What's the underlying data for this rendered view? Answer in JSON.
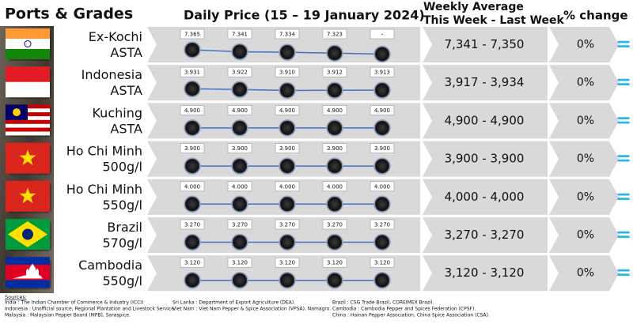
{
  "header": {
    "ports": "Ports & Grades",
    "daily": "Daily Price (15 – 19 January 2024)",
    "weekly_line1": "Weekly Average",
    "weekly_line2": "This Week - Last Week",
    "change": "% change"
  },
  "rows": [
    {
      "port": "Ex-Kochi",
      "grade": "ASTA",
      "prices": [
        {
          "value": 7365,
          "label": "7.365"
        },
        {
          "value": 7341,
          "label": "7.341"
        },
        {
          "value": 7334,
          "label": "7.334"
        },
        {
          "value": 7323,
          "label": "7.323"
        },
        {
          "value": null,
          "label": "-"
        }
      ],
      "weekly": "7,341 - 7,350",
      "change": "0%",
      "trend": "="
    },
    {
      "port": "Indonesia",
      "grade": "ASTA",
      "prices": [
        {
          "value": 3931,
          "label": "3.931"
        },
        {
          "value": 3922,
          "label": "3.922"
        },
        {
          "value": 3910,
          "label": "3.910"
        },
        {
          "value": 3912,
          "label": "3.912"
        },
        {
          "value": 3913,
          "label": "3.913"
        }
      ],
      "weekly": "3,917 - 3,934",
      "change": "0%",
      "trend": "="
    },
    {
      "port": "Kuching",
      "grade": "ASTA",
      "prices": [
        {
          "value": 4900,
          "label": "4.900"
        },
        {
          "value": 4900,
          "label": "4.900"
        },
        {
          "value": 4900,
          "label": "4.900"
        },
        {
          "value": 4900,
          "label": "4.900"
        },
        {
          "value": 4900,
          "label": "4.900"
        }
      ],
      "weekly": "4,900 - 4,900",
      "change": "0%",
      "trend": "="
    },
    {
      "port": "Ho Chi Minh",
      "grade": "500g/l",
      "prices": [
        {
          "value": 3900,
          "label": "3.900"
        },
        {
          "value": 3900,
          "label": "3.900"
        },
        {
          "value": 3900,
          "label": "3.900"
        },
        {
          "value": 3900,
          "label": "3.900"
        },
        {
          "value": 3900,
          "label": "3.900"
        }
      ],
      "weekly": "3,900 - 3,900",
      "change": "0%",
      "trend": "="
    },
    {
      "port": "Ho Chi Minh",
      "grade": "550g/l",
      "prices": [
        {
          "value": 4000,
          "label": "4.000"
        },
        {
          "value": 4000,
          "label": "4.000"
        },
        {
          "value": 4000,
          "label": "4.000"
        },
        {
          "value": 4000,
          "label": "4.000"
        },
        {
          "value": 4000,
          "label": "4.000"
        }
      ],
      "weekly": "4,000 - 4,000",
      "change": "0%",
      "trend": "="
    },
    {
      "port": "Brazil",
      "grade": "570g/l",
      "prices": [
        {
          "value": 3270,
          "label": "3.270"
        },
        {
          "value": 3270,
          "label": "3.270"
        },
        {
          "value": 3270,
          "label": "3.270"
        },
        {
          "value": 3270,
          "label": "3.270"
        },
        {
          "value": 3270,
          "label": "3.270"
        }
      ],
      "weekly": "3,270 - 3,270",
      "change": "0%",
      "trend": "="
    },
    {
      "port": "Cambodia",
      "grade": "550g/l",
      "prices": [
        {
          "value": 3120,
          "label": "3.120"
        },
        {
          "value": 3120,
          "label": "3.120"
        },
        {
          "value": 3120,
          "label": "3.120"
        },
        {
          "value": 3120,
          "label": "3.120"
        },
        {
          "value": 3120,
          "label": "3.120"
        }
      ],
      "weekly": "3,120 - 3,120",
      "change": "0%",
      "trend": "="
    }
  ],
  "sources": {
    "title": "Sources:",
    "columns": [
      [
        "India : The Indian Chamber of Commerce & Industry (ICCI)",
        "Indonesia : Unofficial source, Regional Plantation and Livestock Service.",
        "Malaysia : Malaysian Pepper Board (MPB), Saraspice."
      ],
      [
        "Sri Lanka : Department of Export Agriculture (DEA).",
        "Viet Nam : Viet Nam Pepper & Spice Association (VPSA), Namagro."
      ],
      [
        "Brazil : CSG Trade Brazil, COREIMEX Brazil.",
        "Cambodia : Cambodia Pepper and Spices Federation (CPSF).",
        "China : Hainan Pepper Association, China Spice Association (CSA)."
      ]
    ]
  }
}
